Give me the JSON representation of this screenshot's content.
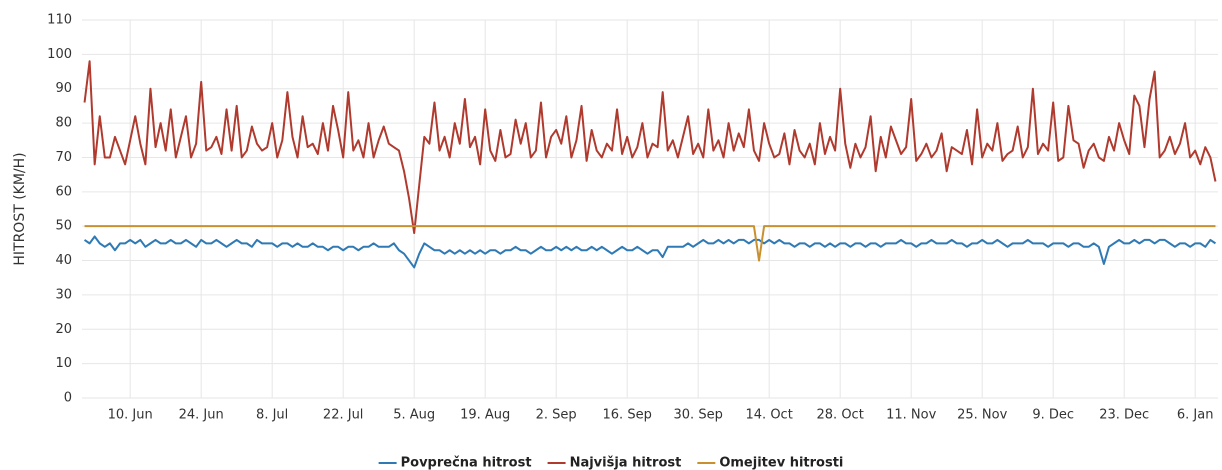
{
  "chart_data": {
    "type": "line",
    "y_label": "HITROST (KM/H)",
    "categories": [
      null,
      null,
      null,
      null,
      null,
      null,
      null,
      null,
      null,
      "10. Jun",
      null,
      null,
      null,
      null,
      null,
      null,
      null,
      null,
      null,
      null,
      null,
      null,
      null,
      "24. Jun",
      null,
      null,
      null,
      null,
      null,
      null,
      null,
      null,
      null,
      null,
      null,
      null,
      null,
      "8. Jul",
      null,
      null,
      null,
      null,
      null,
      null,
      null,
      null,
      null,
      null,
      null,
      null,
      null,
      "22. Jul",
      null,
      null,
      null,
      null,
      null,
      null,
      null,
      null,
      null,
      null,
      null,
      null,
      null,
      "5. Aug",
      null,
      null,
      null,
      null,
      null,
      null,
      null,
      null,
      null,
      null,
      null,
      null,
      null,
      "19. Aug",
      null,
      null,
      null,
      null,
      null,
      null,
      null,
      null,
      null,
      null,
      null,
      null,
      null,
      "2. Sep",
      null,
      null,
      null,
      null,
      null,
      null,
      null,
      null,
      null,
      null,
      null,
      null,
      null,
      "16. Sep",
      null,
      null,
      null,
      null,
      null,
      null,
      null,
      null,
      null,
      null,
      null,
      null,
      null,
      "30. Sep",
      null,
      null,
      null,
      null,
      null,
      null,
      null,
      null,
      null,
      null,
      null,
      null,
      null,
      "14. Oct",
      null,
      null,
      null,
      null,
      null,
      null,
      null,
      null,
      null,
      null,
      null,
      null,
      null,
      "28. Oct",
      null,
      null,
      null,
      null,
      null,
      null,
      null,
      null,
      null,
      null,
      null,
      null,
      null,
      "11. Nov",
      null,
      null,
      null,
      null,
      null,
      null,
      null,
      null,
      null,
      null,
      null,
      null,
      null,
      "25. Nov",
      null,
      null,
      null,
      null,
      null,
      null,
      null,
      null,
      null,
      null,
      null,
      null,
      null,
      "9. Dec",
      null,
      null,
      null,
      null,
      null,
      null,
      null,
      null,
      null,
      null,
      null,
      null,
      null,
      "23. Dec",
      null,
      null,
      null,
      null,
      null,
      null,
      null,
      null,
      null,
      null,
      null,
      null,
      null,
      "6. Jan",
      null,
      null,
      null,
      null
    ],
    "series": [
      {
        "name": "Povprečna hitrost",
        "color": "#2f7ab5",
        "values": [
          46,
          45,
          47,
          45,
          44,
          45,
          43,
          45,
          45,
          46,
          45,
          46,
          44,
          45,
          46,
          45,
          45,
          46,
          45,
          45,
          46,
          45,
          44,
          46,
          45,
          45,
          46,
          45,
          44,
          45,
          46,
          45,
          45,
          44,
          46,
          45,
          45,
          45,
          44,
          45,
          45,
          44,
          45,
          44,
          44,
          45,
          44,
          44,
          43,
          44,
          44,
          43,
          44,
          44,
          43,
          44,
          44,
          45,
          44,
          44,
          44,
          45,
          43,
          42,
          40,
          38,
          42,
          45,
          44,
          43,
          43,
          42,
          43,
          42,
          43,
          42,
          43,
          42,
          43,
          42,
          43,
          43,
          42,
          43,
          43,
          44,
          43,
          43,
          42,
          43,
          44,
          43,
          43,
          44,
          43,
          44,
          43,
          44,
          43,
          43,
          44,
          43,
          44,
          43,
          42,
          43,
          44,
          43,
          43,
          44,
          43,
          42,
          43,
          43,
          41,
          44,
          44,
          44,
          44,
          45,
          44,
          45,
          46,
          45,
          45,
          46,
          45,
          46,
          45,
          46,
          46,
          45,
          46,
          46,
          45,
          46,
          45,
          46,
          45,
          45,
          44,
          45,
          45,
          44,
          45,
          45,
          44,
          45,
          44,
          45,
          45,
          44,
          45,
          45,
          44,
          45,
          45,
          44,
          45,
          45,
          45,
          46,
          45,
          45,
          44,
          45,
          45,
          46,
          45,
          45,
          45,
          46,
          45,
          45,
          44,
          45,
          45,
          46,
          45,
          45,
          46,
          45,
          44,
          45,
          45,
          45,
          46,
          45,
          45,
          45,
          44,
          45,
          45,
          45,
          44,
          45,
          45,
          44,
          44,
          45,
          44,
          39,
          44,
          45,
          46,
          45,
          45,
          46,
          45,
          46,
          46,
          45,
          46,
          46,
          45,
          44,
          45,
          45,
          44,
          45,
          45,
          44,
          46,
          45
        ]
      },
      {
        "name": "Najvišja hitrost",
        "color": "#b03a2e",
        "values": [
          86,
          98,
          68,
          82,
          70,
          70,
          76,
          72,
          68,
          75,
          82,
          74,
          68,
          90,
          73,
          80,
          72,
          84,
          70,
          76,
          82,
          70,
          74,
          92,
          72,
          73,
          76,
          71,
          84,
          72,
          85,
          70,
          72,
          79,
          74,
          72,
          73,
          80,
          70,
          75,
          89,
          76,
          70,
          82,
          73,
          74,
          71,
          80,
          72,
          85,
          78,
          70,
          89,
          72,
          75,
          70,
          80,
          70,
          75,
          79,
          74,
          73,
          72,
          66,
          58,
          48,
          62,
          76,
          74,
          86,
          72,
          76,
          70,
          80,
          74,
          87,
          73,
          76,
          68,
          84,
          72,
          69,
          78,
          70,
          71,
          81,
          74,
          80,
          70,
          72,
          86,
          70,
          76,
          78,
          74,
          82,
          70,
          75,
          85,
          69,
          78,
          72,
          70,
          74,
          72,
          84,
          71,
          76,
          70,
          73,
          80,
          70,
          74,
          73,
          89,
          72,
          75,
          70,
          76,
          82,
          71,
          74,
          70,
          84,
          72,
          75,
          70,
          80,
          72,
          77,
          73,
          84,
          72,
          69,
          80,
          74,
          70,
          71,
          77,
          68,
          78,
          72,
          70,
          74,
          68,
          80,
          71,
          76,
          72,
          90,
          74,
          67,
          74,
          70,
          73,
          82,
          66,
          76,
          70,
          79,
          75,
          71,
          73,
          87,
          69,
          71,
          74,
          70,
          72,
          77,
          66,
          73,
          72,
          71,
          78,
          68,
          84,
          70,
          74,
          72,
          80,
          69,
          71,
          72,
          79,
          70,
          73,
          90,
          71,
          74,
          72,
          86,
          69,
          70,
          85,
          75,
          74,
          67,
          72,
          74,
          70,
          69,
          76,
          72,
          80,
          75,
          71,
          88,
          85,
          73,
          87,
          95,
          70,
          72,
          76,
          71,
          74,
          80,
          70,
          72,
          68,
          73,
          70,
          63
        ]
      },
      {
        "name": "Omejitev hitrosti",
        "color": "#c8902e",
        "values": [
          50,
          50,
          50,
          50,
          50,
          50,
          50,
          50,
          50,
          50,
          50,
          50,
          50,
          50,
          50,
          50,
          50,
          50,
          50,
          50,
          50,
          50,
          50,
          50,
          50,
          50,
          50,
          50,
          50,
          50,
          50,
          50,
          50,
          50,
          50,
          50,
          50,
          50,
          50,
          50,
          50,
          50,
          50,
          50,
          50,
          50,
          50,
          50,
          50,
          50,
          50,
          50,
          50,
          50,
          50,
          50,
          50,
          50,
          50,
          50,
          50,
          50,
          50,
          50,
          50,
          50,
          50,
          50,
          50,
          50,
          50,
          50,
          50,
          50,
          50,
          50,
          50,
          50,
          50,
          50,
          50,
          50,
          50,
          50,
          50,
          50,
          50,
          50,
          50,
          50,
          50,
          50,
          50,
          50,
          50,
          50,
          50,
          50,
          50,
          50,
          50,
          50,
          50,
          50,
          50,
          50,
          50,
          50,
          50,
          50,
          50,
          50,
          50,
          50,
          50,
          50,
          50,
          50,
          50,
          50,
          50,
          50,
          50,
          50,
          50,
          50,
          50,
          50,
          50,
          50,
          50,
          50,
          50,
          40,
          50,
          50,
          50,
          50,
          50,
          50,
          50,
          50,
          50,
          50,
          50,
          50,
          50,
          50,
          50,
          50,
          50,
          50,
          50,
          50,
          50,
          50,
          50,
          50,
          50,
          50,
          50,
          50,
          50,
          50,
          50,
          50,
          50,
          50,
          50,
          50,
          50,
          50,
          50,
          50,
          50,
          50,
          50,
          50,
          50,
          50,
          50,
          50,
          50,
          50,
          50,
          50,
          50,
          50,
          50,
          50,
          50,
          50,
          50,
          50,
          50,
          50,
          50,
          50,
          50,
          50,
          50,
          50,
          50,
          50,
          50,
          50,
          50,
          50,
          50,
          50,
          50,
          50,
          50,
          50,
          50,
          50,
          50,
          50,
          50,
          50,
          50,
          50,
          50,
          50
        ]
      }
    ],
    "ylim": [
      0,
      110
    ],
    "yticks": [
      0,
      10,
      20,
      30,
      40,
      50,
      60,
      70,
      80,
      90,
      100,
      110
    ],
    "grid": true,
    "legend": "bottom"
  }
}
